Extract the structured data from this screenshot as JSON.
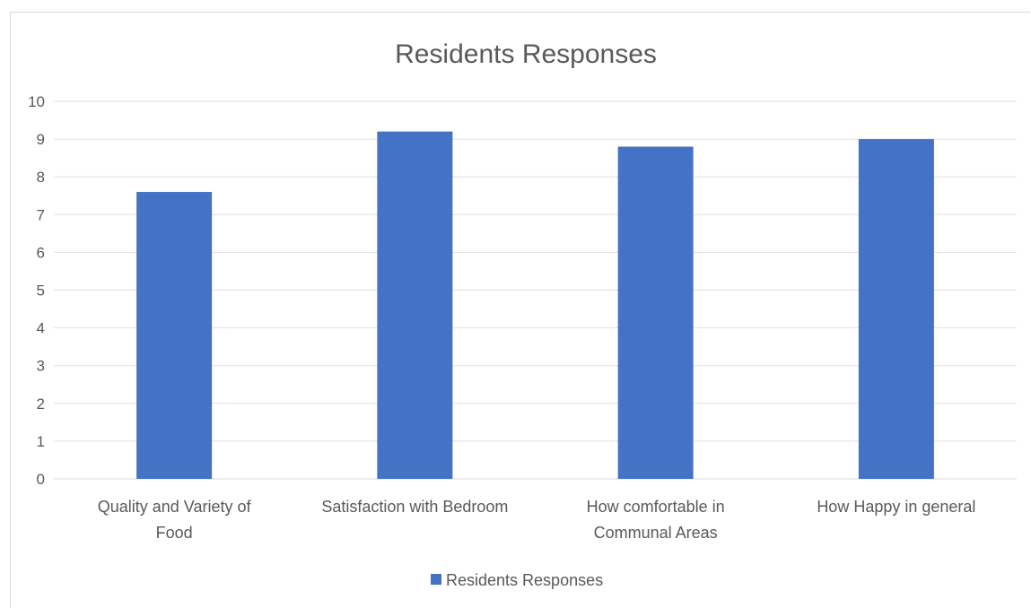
{
  "chart_data": {
    "type": "bar",
    "title": "Residents Responses",
    "categories": [
      [
        "Quality and Variety of",
        "Food"
      ],
      [
        "Satisfaction with Bedroom"
      ],
      [
        "How comfortable in",
        "Communal Areas"
      ],
      [
        "How Happy in general"
      ]
    ],
    "series": [
      {
        "name": "Residents Responses",
        "color": "#4472c4",
        "values": [
          7.6,
          9.2,
          8.8,
          9.0
        ]
      }
    ],
    "ylim": [
      0,
      10
    ],
    "yticks": [
      "0",
      "1",
      "2",
      "3",
      "4",
      "5",
      "6",
      "7",
      "8",
      "9",
      "10"
    ],
    "grid": true,
    "legend": "bottom"
  }
}
